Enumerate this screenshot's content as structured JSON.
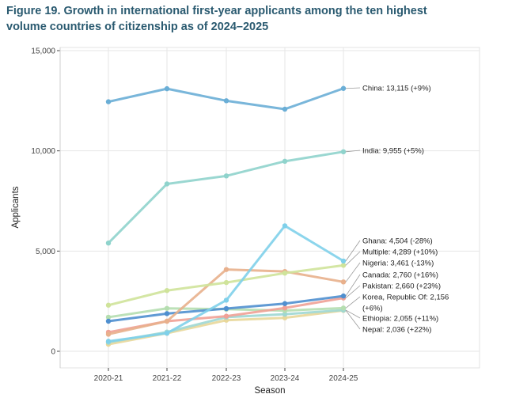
{
  "title_line1": "Figure 19. Growth in international first-year applicants among the ten highest",
  "title_line2": "volume countries of citizenship as of 2024–2025",
  "chart_data": {
    "type": "line",
    "title": "Figure 19. Growth in international first-year applicants among the ten highest volume countries of citizenship as of 2024–2025",
    "xlabel": "Season",
    "ylabel": "Applicants",
    "categories": [
      "2020-21",
      "2021-22",
      "2022-23",
      "2023-24",
      "2024-25"
    ],
    "ylim": [
      -500,
      15000
    ],
    "yticks": [
      0,
      5000,
      10000,
      15000
    ],
    "ytick_labels": [
      "0",
      "5,000",
      "10,000",
      "15,000"
    ],
    "grid": true,
    "series": [
      {
        "name": "China",
        "label": "China: 13,115 (+9%)",
        "color": "#6aaed6",
        "values": [
          12450,
          13100,
          12500,
          12080,
          13115
        ]
      },
      {
        "name": "India",
        "label": "India: 9,955 (+5%)",
        "color": "#8fd3cc",
        "values": [
          5400,
          8350,
          8750,
          9480,
          9955
        ]
      },
      {
        "name": "Ghana",
        "label": "Ghana: 4,504 (-28%)",
        "color": "#7fd0ea",
        "values": [
          500,
          900,
          2550,
          6260,
          4504
        ]
      },
      {
        "name": "Multiple",
        "label": "Multiple: 4,289 (+10%)",
        "color": "#cfe39a",
        "values": [
          2300,
          3030,
          3430,
          3900,
          4289
        ]
      },
      {
        "name": "Nigeria",
        "label": "Nigeria: 3,461 (-13%)",
        "color": "#e8b08c",
        "values": [
          850,
          1500,
          4080,
          3980,
          3461
        ]
      },
      {
        "name": "Canada",
        "label": "Canada: 2,760 (+16%)",
        "color": "#4f8fcf",
        "values": [
          1500,
          1880,
          2130,
          2380,
          2760
        ]
      },
      {
        "name": "Pakistan",
        "label": "Pakistan: 2,660 (+23%)",
        "color": "#f0a196",
        "values": [
          950,
          1500,
          1750,
          2160,
          2660
        ]
      },
      {
        "name": "Korea, Republic Of",
        "label": "Korea, Republic Of: 2,156 (+6%)",
        "color": "#b5deb0",
        "values": [
          1700,
          2140,
          2100,
          2030,
          2156
        ]
      },
      {
        "name": "Ethiopia",
        "label": "Ethiopia: 2,055 (+11%)",
        "color": "#9fd7d3",
        "values": [
          450,
          960,
          1700,
          1850,
          2055
        ]
      },
      {
        "name": "Nepal",
        "label": "Nepal: 2,036 (+22%)",
        "color": "#e8d79a",
        "values": [
          350,
          900,
          1550,
          1670,
          2036
        ]
      }
    ]
  }
}
